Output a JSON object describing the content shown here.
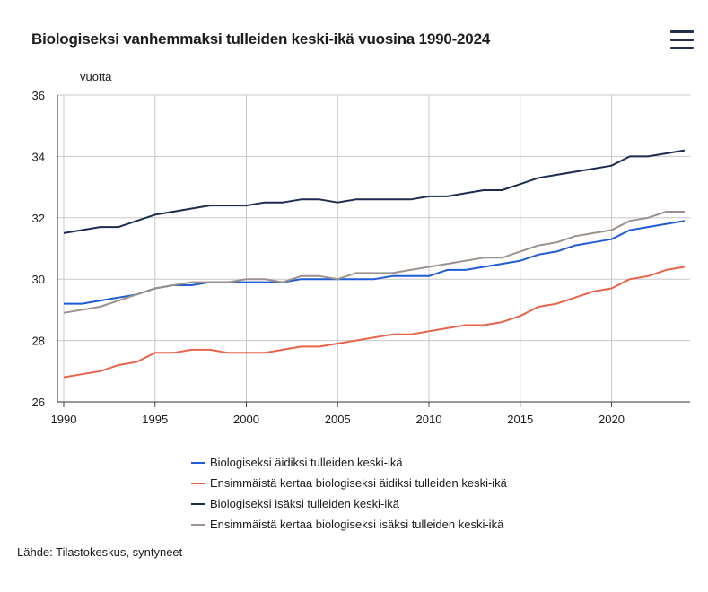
{
  "title": "Biologiseksi vanhemmaksi tulleiden keski-ikä vuosina 1990-2024",
  "menu_icon": "hamburger-menu-icon",
  "source": "Lähde: Tilastokeskus, syntyneet",
  "chart_data": {
    "type": "line",
    "title": "Biologiseksi vanhemmaksi tulleiden keski-ikä vuosina 1990-2024",
    "ylabel": "vuotta",
    "xlabel": "",
    "xlim": [
      1990,
      2024
    ],
    "ylim": [
      26,
      36
    ],
    "xticks": [
      1990,
      1995,
      2000,
      2005,
      2010,
      2015,
      2020
    ],
    "yticks": [
      26,
      28,
      30,
      32,
      34,
      36
    ],
    "grid": true,
    "legend_position": "bottom",
    "x": [
      1990,
      1991,
      1992,
      1993,
      1994,
      1995,
      1996,
      1997,
      1998,
      1999,
      2000,
      2001,
      2002,
      2003,
      2004,
      2005,
      2006,
      2007,
      2008,
      2009,
      2010,
      2011,
      2012,
      2013,
      2014,
      2015,
      2016,
      2017,
      2018,
      2019,
      2020,
      2021,
      2022,
      2023,
      2024
    ],
    "series": [
      {
        "name": "Biologiseksi äidiksi tulleiden keski-ikä",
        "color": "#1f5bd6",
        "values": [
          29.2,
          29.2,
          29.3,
          29.4,
          29.5,
          29.7,
          29.8,
          29.8,
          29.9,
          29.9,
          29.9,
          29.9,
          29.9,
          30.0,
          30.0,
          30.0,
          30.0,
          30.0,
          30.1,
          30.1,
          30.1,
          30.3,
          30.3,
          30.4,
          30.5,
          30.6,
          30.8,
          30.9,
          31.1,
          31.2,
          31.3,
          31.6,
          31.7,
          31.8,
          31.9
        ]
      },
      {
        "name": "Ensimmäistä kertaa biologiseksi äidiksi tulleiden keski-ikä",
        "color": "#e8634a",
        "values": [
          26.8,
          26.9,
          27.0,
          27.2,
          27.3,
          27.6,
          27.6,
          27.7,
          27.7,
          27.6,
          27.6,
          27.6,
          27.7,
          27.8,
          27.8,
          27.9,
          28.0,
          28.1,
          28.2,
          28.2,
          28.3,
          28.4,
          28.5,
          28.5,
          28.6,
          28.8,
          29.1,
          29.2,
          29.4,
          29.6,
          29.7,
          30.0,
          30.1,
          30.3,
          30.4
        ]
      },
      {
        "name": "Biologiseksi isäksi tulleiden keski-ikä",
        "color": "#1c2b4f",
        "values": [
          31.5,
          31.6,
          31.7,
          31.7,
          31.9,
          32.1,
          32.2,
          32.3,
          32.4,
          32.4,
          32.4,
          32.5,
          32.5,
          32.6,
          32.6,
          32.5,
          32.6,
          32.6,
          32.6,
          32.6,
          32.7,
          32.7,
          32.8,
          32.9,
          32.9,
          33.1,
          33.3,
          33.4,
          33.5,
          33.6,
          33.7,
          34.0,
          34.0,
          34.1,
          34.2
        ]
      },
      {
        "name": "Ensimmäistä kertaa biologiseksi isäksi tulleiden keski-ikä",
        "color": "#9b918d",
        "values": [
          28.9,
          29.0,
          29.1,
          29.3,
          29.5,
          29.7,
          29.8,
          29.9,
          29.9,
          29.9,
          30.0,
          30.0,
          29.9,
          30.1,
          30.1,
          30.0,
          30.2,
          30.2,
          30.2,
          30.3,
          30.4,
          30.5,
          30.6,
          30.7,
          30.7,
          30.9,
          31.1,
          31.2,
          31.4,
          31.5,
          31.6,
          31.9,
          32.0,
          32.2,
          32.2
        ]
      }
    ]
  }
}
